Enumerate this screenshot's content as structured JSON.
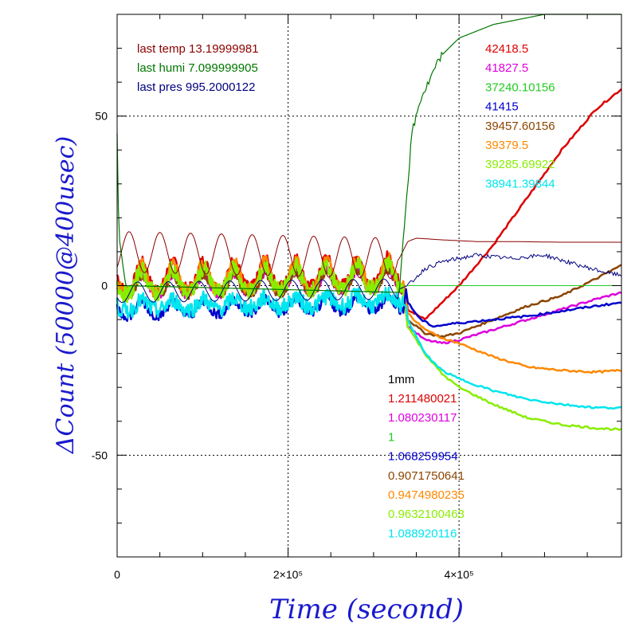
{
  "chart_data": {
    "type": "line",
    "xlabel": "Time (second)",
    "ylabel": "ΔCount (50000@400usec)",
    "xlim": [
      0,
      590000
    ],
    "ylim": [
      -80,
      80
    ],
    "x_ticks": [
      {
        "value": 0,
        "label": "0"
      },
      {
        "value": 200000,
        "label": "2×10⁵"
      },
      {
        "value": 400000,
        "label": "4×10⁵"
      }
    ],
    "y_ticks": [
      {
        "value": 50,
        "label": "50"
      },
      {
        "value": 0,
        "label": "0"
      },
      {
        "value": -50,
        "label": "-50"
      }
    ],
    "grid": true,
    "env_annotations": [
      {
        "text": "last temp 13.19999981",
        "color": "#8b0000"
      },
      {
        "text": "last humi 7.099999905",
        "color": "#007700"
      },
      {
        "text": "last pres 995.2000122",
        "color": "#000080"
      }
    ],
    "count_labels": [
      {
        "text": "42418.5",
        "color": "#dd0000"
      },
      {
        "text": "41827.5",
        "color": "#dd00dd"
      },
      {
        "text": "37240.10156",
        "color": "#22cc22"
      },
      {
        "text": "41415",
        "color": "#0000cc"
      },
      {
        "text": "39457.60156",
        "color": "#8b4500"
      },
      {
        "text": "39379.5",
        "color": "#ff8800"
      },
      {
        "text": "39285.69922",
        "color": "#88ee00"
      },
      {
        "text": "38941.39844",
        "color": "#00e5ee"
      }
    ],
    "ratio_header": {
      "text": "1mm",
      "color": "#000000"
    },
    "ratio_labels": [
      {
        "text": "1.211480021",
        "color": "#dd0000"
      },
      {
        "text": "1.080230117",
        "color": "#dd00dd"
      },
      {
        "text": "1",
        "color": "#22cc22"
      },
      {
        "text": "1.068259954",
        "color": "#0000cc"
      },
      {
        "text": "0.9071750641",
        "color": "#8b4500"
      },
      {
        "text": "0.9474980235",
        "color": "#ff8800"
      },
      {
        "text": "0.9632100463",
        "color": "#88ee00"
      },
      {
        "text": "1.088920116",
        "color": "#00e5ee"
      }
    ],
    "series": [
      {
        "color": "#dd0000",
        "width": 2.5,
        "amp": 8,
        "offset": 3,
        "wide": 3,
        "points": [
          [
            340000,
            -7
          ],
          [
            360000,
            -10
          ],
          [
            380000,
            -5
          ],
          [
            400000,
            0
          ],
          [
            440000,
            12
          ],
          [
            480000,
            26
          ],
          [
            520000,
            40
          ],
          [
            560000,
            52
          ],
          [
            590000,
            58
          ]
        ]
      },
      {
        "color": "#dd00dd",
        "width": 2.5,
        "amp": 6,
        "offset": 0,
        "wide": 3,
        "points": [
          [
            340000,
            -12
          ],
          [
            360000,
            -16
          ],
          [
            380000,
            -17
          ],
          [
            400000,
            -16
          ],
          [
            440000,
            -13
          ],
          [
            480000,
            -10
          ],
          [
            520000,
            -7
          ],
          [
            560000,
            -4
          ],
          [
            590000,
            -2
          ]
        ]
      },
      {
        "color": "#8b4500",
        "width": 2.5,
        "amp": 6,
        "offset": 0,
        "wide": 3,
        "points": [
          [
            340000,
            -10
          ],
          [
            360000,
            -14
          ],
          [
            380000,
            -15
          ],
          [
            400000,
            -14
          ],
          [
            440000,
            -10
          ],
          [
            480000,
            -6
          ],
          [
            520000,
            -3
          ],
          [
            560000,
            2
          ],
          [
            590000,
            6
          ]
        ]
      },
      {
        "color": "#ff8800",
        "width": 2.5,
        "amp": 8,
        "offset": 2,
        "wide": 4,
        "points": [
          [
            340000,
            -8
          ],
          [
            355000,
            -12
          ],
          [
            375000,
            -15
          ],
          [
            400000,
            -17
          ],
          [
            440000,
            -21
          ],
          [
            480000,
            -24
          ],
          [
            520000,
            -25
          ],
          [
            560000,
            -25.5
          ],
          [
            590000,
            -25
          ]
        ]
      },
      {
        "color": "#88ee00",
        "width": 2.5,
        "amp": 7,
        "offset": 1,
        "wide": 5,
        "points": [
          [
            340000,
            -12
          ],
          [
            360000,
            -20
          ],
          [
            380000,
            -26
          ],
          [
            400000,
            -30
          ],
          [
            440000,
            -35
          ],
          [
            480000,
            -39
          ],
          [
            520000,
            -41
          ],
          [
            560000,
            -42
          ],
          [
            590000,
            -42.5
          ]
        ]
      },
      {
        "color": "#0000cc",
        "width": 2.5,
        "amp": 4,
        "offset": -7,
        "wide": 3,
        "points": [
          [
            340000,
            -5
          ],
          [
            355000,
            -10
          ],
          [
            370000,
            -12
          ],
          [
            400000,
            -11
          ],
          [
            440000,
            -10
          ],
          [
            480000,
            -9
          ],
          [
            520000,
            -7.5
          ],
          [
            560000,
            -6
          ],
          [
            590000,
            -5
          ]
        ]
      },
      {
        "color": "#00e5ee",
        "width": 2.5,
        "amp": 3,
        "offset": -6,
        "wide": 5,
        "points": [
          [
            340000,
            -10
          ],
          [
            360000,
            -20
          ],
          [
            380000,
            -25
          ],
          [
            400000,
            -27.5
          ],
          [
            440000,
            -31
          ],
          [
            480000,
            -33.5
          ],
          [
            520000,
            -35
          ],
          [
            560000,
            -36
          ],
          [
            590000,
            -36
          ]
        ]
      }
    ],
    "env_series": [
      {
        "name": "temp",
        "color": "#8b0000",
        "width": 1,
        "points": [
          [
            0,
            10
          ],
          [
            330000,
            8
          ],
          [
            340000,
            13
          ],
          [
            350000,
            14
          ],
          [
            380000,
            13.5
          ],
          [
            420000,
            13
          ],
          [
            460000,
            13
          ],
          [
            520000,
            12.8
          ],
          [
            590000,
            12.8
          ]
        ]
      },
      {
        "name": "pres",
        "color": "#000080",
        "width": 1,
        "points": [
          [
            0,
            -2
          ],
          [
            330000,
            -1
          ],
          [
            340000,
            0
          ],
          [
            360000,
            5
          ],
          [
            380000,
            7
          ],
          [
            420000,
            9
          ],
          [
            460000,
            8
          ],
          [
            500000,
            9
          ],
          [
            540000,
            6
          ],
          [
            570000,
            4
          ],
          [
            590000,
            3
          ]
        ]
      },
      {
        "name": "humi",
        "color": "#007700",
        "width": 1.2,
        "points": [
          [
            0,
            45
          ],
          [
            2000,
            15
          ],
          [
            10000,
            0
          ],
          [
            330000,
            -2
          ],
          [
            335000,
            15
          ],
          [
            345000,
            45
          ],
          [
            355000,
            55
          ],
          [
            365000,
            60
          ],
          [
            370000,
            63
          ],
          [
            380000,
            68
          ],
          [
            400000,
            73
          ],
          [
            440000,
            77
          ],
          [
            480000,
            79
          ],
          [
            500000,
            80
          ],
          [
            590000,
            80
          ]
        ]
      },
      {
        "name": "ref",
        "color": "#22cc22",
        "width": 1,
        "points": [
          [
            340000,
            0
          ],
          [
            590000,
            0
          ]
        ]
      }
    ]
  }
}
